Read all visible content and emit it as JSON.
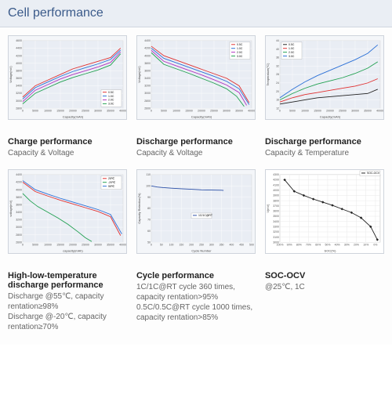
{
  "header": {
    "title": "Cell performance"
  },
  "charts": {
    "charge_cv": {
      "type": "line",
      "xlabel": "Capacity(mAh)",
      "ylabel": "Voltage(mV)",
      "xlim": [
        0,
        40000
      ],
      "xtick_step": 5000,
      "ylim": [
        2800,
        4600
      ],
      "ytick_step": 200,
      "background": "#e9edf4",
      "grid_color": "#ffffff",
      "series": [
        {
          "label": "0.5C",
          "color": "#e03030",
          "data": [
            [
              0,
              3100
            ],
            [
              5000,
              3400
            ],
            [
              10000,
              3550
            ],
            [
              15000,
              3700
            ],
            [
              20000,
              3850
            ],
            [
              25000,
              3950
            ],
            [
              30000,
              4050
            ],
            [
              35000,
              4150
            ],
            [
              39000,
              4400
            ]
          ]
        },
        {
          "label": "1.0C",
          "color": "#2a6fd6",
          "data": [
            [
              0,
              3050
            ],
            [
              5000,
              3350
            ],
            [
              10000,
              3500
            ],
            [
              15000,
              3650
            ],
            [
              20000,
              3780
            ],
            [
              25000,
              3880
            ],
            [
              30000,
              3980
            ],
            [
              35000,
              4100
            ],
            [
              39000,
              4350
            ]
          ]
        },
        {
          "label": "2.0C",
          "color": "#b030c0",
          "data": [
            [
              0,
              2980
            ],
            [
              5000,
              3280
            ],
            [
              10000,
              3430
            ],
            [
              15000,
              3580
            ],
            [
              20000,
              3700
            ],
            [
              25000,
              3800
            ],
            [
              30000,
              3900
            ],
            [
              35000,
              4020
            ],
            [
              39000,
              4300
            ]
          ]
        },
        {
          "label": "3.0C",
          "color": "#20a050",
          "data": [
            [
              0,
              2920
            ],
            [
              5000,
              3200
            ],
            [
              10000,
              3350
            ],
            [
              15000,
              3500
            ],
            [
              20000,
              3620
            ],
            [
              25000,
              3720
            ],
            [
              30000,
              3820
            ],
            [
              35000,
              3950
            ],
            [
              39000,
              4250
            ]
          ]
        }
      ],
      "legend_pos": "bottom-right",
      "caption_title": "Charge performance",
      "caption_sub": "Capacity & Voltage"
    },
    "discharge_cv": {
      "type": "line",
      "xlabel": "Capacity(mAh)",
      "ylabel": "Voltage(mV)",
      "xlim": [
        0,
        40000
      ],
      "xtick_step": 5000,
      "ylim": [
        2600,
        4400
      ],
      "ytick_step": 200,
      "background": "#e9edf4",
      "grid_color": "#ffffff",
      "series": [
        {
          "label": "0.5C",
          "color": "#e03030",
          "data": [
            [
              0,
              4250
            ],
            [
              5000,
              4000
            ],
            [
              10000,
              3880
            ],
            [
              15000,
              3760
            ],
            [
              20000,
              3640
            ],
            [
              25000,
              3520
            ],
            [
              30000,
              3400
            ],
            [
              35000,
              3200
            ],
            [
              39000,
              2750
            ]
          ]
        },
        {
          "label": "1.0C",
          "color": "#2a6fd6",
          "data": [
            [
              0,
              4200
            ],
            [
              5000,
              3930
            ],
            [
              10000,
              3810
            ],
            [
              15000,
              3690
            ],
            [
              20000,
              3570
            ],
            [
              25000,
              3450
            ],
            [
              30000,
              3320
            ],
            [
              35000,
              3120
            ],
            [
              39000,
              2700
            ]
          ]
        },
        {
          "label": "2.0C",
          "color": "#b030c0",
          "data": [
            [
              0,
              4140
            ],
            [
              5000,
              3850
            ],
            [
              10000,
              3730
            ],
            [
              15000,
              3610
            ],
            [
              20000,
              3490
            ],
            [
              25000,
              3360
            ],
            [
              30000,
              3220
            ],
            [
              35000,
              3020
            ],
            [
              38000,
              2680
            ]
          ]
        },
        {
          "label": "3.0C",
          "color": "#20a050",
          "data": [
            [
              0,
              4080
            ],
            [
              5000,
              3770
            ],
            [
              10000,
              3650
            ],
            [
              15000,
              3530
            ],
            [
              20000,
              3400
            ],
            [
              25000,
              3270
            ],
            [
              30000,
              3120
            ],
            [
              34000,
              2920
            ],
            [
              37000,
              2650
            ]
          ]
        }
      ],
      "legend_pos": "top-right",
      "caption_title": "Discharge performance",
      "caption_sub": "Capacity & Voltage"
    },
    "discharge_ct": {
      "type": "line",
      "xlabel": "Capacity(mAh)",
      "ylabel": "Temperature(°C)",
      "xlim": [
        0,
        40000
      ],
      "xtick_step": 5000,
      "ylim": [
        12,
        44
      ],
      "ytick_step": 4,
      "background": "#e9edf4",
      "grid_color": "#ffffff",
      "series": [
        {
          "label": "0.5C",
          "color": "#222222",
          "data": [
            [
              0,
              14
            ],
            [
              5000,
              15
            ],
            [
              10000,
              16
            ],
            [
              15000,
              17
            ],
            [
              20000,
              17.5
            ],
            [
              25000,
              18
            ],
            [
              30000,
              18.5
            ],
            [
              35000,
              19
            ],
            [
              39000,
              21
            ]
          ]
        },
        {
          "label": "1.0C",
          "color": "#e03030",
          "data": [
            [
              0,
              15
            ],
            [
              5000,
              17
            ],
            [
              10000,
              18.5
            ],
            [
              15000,
              19.5
            ],
            [
              20000,
              20.5
            ],
            [
              25000,
              21.5
            ],
            [
              30000,
              22.5
            ],
            [
              35000,
              24
            ],
            [
              39000,
              26
            ]
          ]
        },
        {
          "label": "2.0C",
          "color": "#20a050",
          "data": [
            [
              0,
              16
            ],
            [
              5000,
              19
            ],
            [
              10000,
              21.5
            ],
            [
              15000,
              23.5
            ],
            [
              20000,
              25
            ],
            [
              25000,
              26.5
            ],
            [
              30000,
              28.5
            ],
            [
              35000,
              31
            ],
            [
              39000,
              34
            ]
          ]
        },
        {
          "label": "3.0C",
          "color": "#2a6fd6",
          "data": [
            [
              0,
              17
            ],
            [
              5000,
              21
            ],
            [
              10000,
              24.5
            ],
            [
              15000,
              27.5
            ],
            [
              20000,
              30
            ],
            [
              25000,
              32.5
            ],
            [
              30000,
              35
            ],
            [
              35000,
              38
            ],
            [
              39000,
              42
            ]
          ]
        }
      ],
      "legend_pos": "top-left",
      "caption_title": "Discharge performance",
      "caption_sub": "Capacity & Temperature"
    },
    "temp_discharge": {
      "type": "line",
      "xlabel": "capacity(mAh)",
      "ylabel": "voltage(mV)",
      "xlim": [
        0,
        40000
      ],
      "xtick_step": 5000,
      "ylim": [
        2600,
        4400
      ],
      "ytick_step": 200,
      "background": "#e9edf4",
      "grid_color": "#ffffff",
      "series": [
        {
          "label": "25℃",
          "color": "#e03030",
          "data": [
            [
              0,
              4200
            ],
            [
              5000,
              3950
            ],
            [
              10000,
              3830
            ],
            [
              15000,
              3720
            ],
            [
              20000,
              3620
            ],
            [
              25000,
              3520
            ],
            [
              30000,
              3420
            ],
            [
              35000,
              3280
            ],
            [
              39000,
              2780
            ]
          ]
        },
        {
          "label": "-20℃",
          "color": "#20a050",
          "data": [
            [
              0,
              3900
            ],
            [
              3000,
              3700
            ],
            [
              6000,
              3550
            ],
            [
              10000,
              3400
            ],
            [
              14000,
              3250
            ],
            [
              18000,
              3080
            ],
            [
              22000,
              2880
            ],
            [
              25000,
              2720
            ],
            [
              27500,
              2620
            ]
          ]
        },
        {
          "label": "55℃",
          "color": "#2a6fd6",
          "data": [
            [
              0,
              4240
            ],
            [
              5000,
              4000
            ],
            [
              10000,
              3880
            ],
            [
              15000,
              3770
            ],
            [
              20000,
              3670
            ],
            [
              25000,
              3570
            ],
            [
              30000,
              3470
            ],
            [
              35000,
              3340
            ],
            [
              39500,
              2820
            ]
          ]
        }
      ],
      "legend_pos": "top-right",
      "caption_title": "High-low-temperature discharge performance",
      "caption_sub": "Discharge @55℃, capacity rentation≥98%\nDischarge @-20℃,  capacity rentation≥70%"
    },
    "cycle": {
      "type": "line",
      "xlabel": "Cycle Number",
      "ylabel": "Capacity Retention(%)",
      "xlim": [
        0,
        500
      ],
      "xtick_step": 50,
      "ylim": [
        50,
        110
      ],
      "ytick_step": 10,
      "background": "#e9edf4",
      "grid_color": "#ffffff",
      "series": [
        {
          "label": "1C/1C@RT",
          "color": "#2a4fa6",
          "data": [
            [
              0,
              100
            ],
            [
              30,
              99
            ],
            [
              60,
              98.5
            ],
            [
              100,
              98
            ],
            [
              150,
              97.5
            ],
            [
              200,
              97
            ],
            [
              250,
              96.5
            ],
            [
              300,
              96.3
            ],
            [
              350,
              96.2
            ],
            [
              360,
              96
            ]
          ]
        }
      ],
      "legend_pos": "center",
      "caption_title": "Cycle performance",
      "caption_sub": "1C/1C@RT cycle 360 times, capacity rentation>95%\n0.5C/0.5C@RT cycle 1000 times, capacity rentation>85%"
    },
    "soc_ocv": {
      "type": "line-markers",
      "xlabel": "SOC(%)",
      "ylabel": "V(mV)",
      "xlim": [
        0,
        105
      ],
      "xtick_step": 10,
      "ylim": [
        3000,
        4300
      ],
      "ytick_step": 100,
      "xticks_labels": [
        "100%",
        "90%",
        "80%",
        "70%",
        "60%",
        "50%",
        "40%",
        "30%",
        "20%",
        "10%",
        "0%"
      ],
      "background": "#ffffff",
      "grid_color": "#e4e4e4",
      "series": [
        {
          "label": "SOC-OCV",
          "color": "#222222",
          "marker": "diamond",
          "data": [
            [
              5,
              4200
            ],
            [
              15,
              3980
            ],
            [
              25,
              3900
            ],
            [
              35,
              3830
            ],
            [
              45,
              3770
            ],
            [
              55,
              3710
            ],
            [
              65,
              3640
            ],
            [
              75,
              3570
            ],
            [
              85,
              3470
            ],
            [
              95,
              3300
            ],
            [
              102,
              3050
            ]
          ]
        }
      ],
      "legend_pos": "outside-top-right",
      "caption_title": "SOC-OCV",
      "caption_sub": "@25℃, 1C"
    }
  }
}
